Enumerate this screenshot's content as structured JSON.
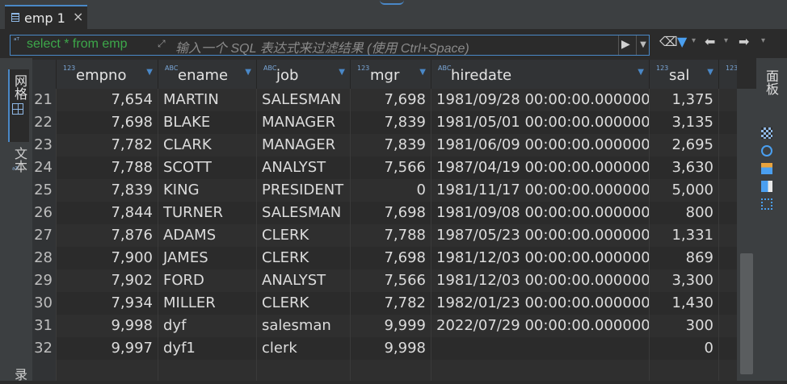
{
  "tab": {
    "label": "emp 1",
    "close": "×"
  },
  "filter": {
    "sql_icon": "ᵃᵀ",
    "sql_text": "select * from emp",
    "placeholder": "输入一个 SQL 表达式来过滤结果 (使用 Ctrl+Space)"
  },
  "toolbar": {
    "icons": [
      "erase-icon",
      "filter-icon",
      "chevron-down-icon",
      "arrow-left-icon",
      "chevron-down-icon",
      "arrow-right-icon",
      "chevron-down-icon"
    ]
  },
  "left_tabs": {
    "grid": "网格",
    "text": "文本",
    "bottom": "录"
  },
  "right_tabs": {
    "panel": "面板"
  },
  "columns": [
    {
      "type": "123",
      "name": "empno"
    },
    {
      "type": "ABC",
      "name": "ename"
    },
    {
      "type": "ABC",
      "name": "job"
    },
    {
      "type": "123",
      "name": "mgr"
    },
    {
      "type": "ABC",
      "name": "hiredate"
    },
    {
      "type": "123",
      "name": "sal"
    },
    {
      "type": "123",
      "name": ""
    }
  ],
  "rows": [
    {
      "n": "21",
      "empno": "7,654",
      "ename": "MARTIN",
      "job": "SALESMAN",
      "mgr": "7,698",
      "hiredate": "1981/09/28 00:00:00.0000000",
      "sal": "1,375"
    },
    {
      "n": "22",
      "empno": "7,698",
      "ename": "BLAKE",
      "job": "MANAGER",
      "mgr": "7,839",
      "hiredate": "1981/05/01 00:00:00.0000000",
      "sal": "3,135"
    },
    {
      "n": "23",
      "empno": "7,782",
      "ename": "CLARK",
      "job": "MANAGER",
      "mgr": "7,839",
      "hiredate": "1981/06/09 00:00:00.0000000",
      "sal": "2,695"
    },
    {
      "n": "24",
      "empno": "7,788",
      "ename": "SCOTT",
      "job": "ANALYST",
      "mgr": "7,566",
      "hiredate": "1987/04/19 00:00:00.0000000",
      "sal": "3,630"
    },
    {
      "n": "25",
      "empno": "7,839",
      "ename": "KING",
      "job": "PRESIDENT",
      "mgr": "0",
      "hiredate": "1981/11/17 00:00:00.0000000",
      "sal": "5,000"
    },
    {
      "n": "26",
      "empno": "7,844",
      "ename": "TURNER",
      "job": "SALESMAN",
      "mgr": "7,698",
      "hiredate": "1981/09/08 00:00:00.0000000",
      "sal": "800"
    },
    {
      "n": "27",
      "empno": "7,876",
      "ename": "ADAMS",
      "job": "CLERK",
      "mgr": "7,788",
      "hiredate": "1987/05/23 00:00:00.0000000",
      "sal": "1,331"
    },
    {
      "n": "28",
      "empno": "7,900",
      "ename": "JAMES",
      "job": "CLERK",
      "mgr": "7,698",
      "hiredate": "1981/12/03 00:00:00.0000000",
      "sal": "869"
    },
    {
      "n": "29",
      "empno": "7,902",
      "ename": "FORD",
      "job": "ANALYST",
      "mgr": "7,566",
      "hiredate": "1981/12/03 00:00:00.0000000",
      "sal": "3,300"
    },
    {
      "n": "30",
      "empno": "7,934",
      "ename": "MILLER",
      "job": "CLERK",
      "mgr": "7,782",
      "hiredate": "1982/01/23 00:00:00.0000000",
      "sal": "1,430"
    },
    {
      "n": "31",
      "empno": "9,998",
      "ename": "dyf",
      "job": "salesman",
      "mgr": "9,999",
      "hiredate": "2022/07/29 00:00:00.0000000",
      "sal": "300"
    },
    {
      "n": "32",
      "empno": "9,997",
      "ename": "dyf1",
      "job": "clerk",
      "mgr": "9,998",
      "hiredate": "",
      "sal": "0"
    }
  ],
  "colors": {
    "accent": "#4a88c7",
    "sql_text": "#3da84a"
  }
}
